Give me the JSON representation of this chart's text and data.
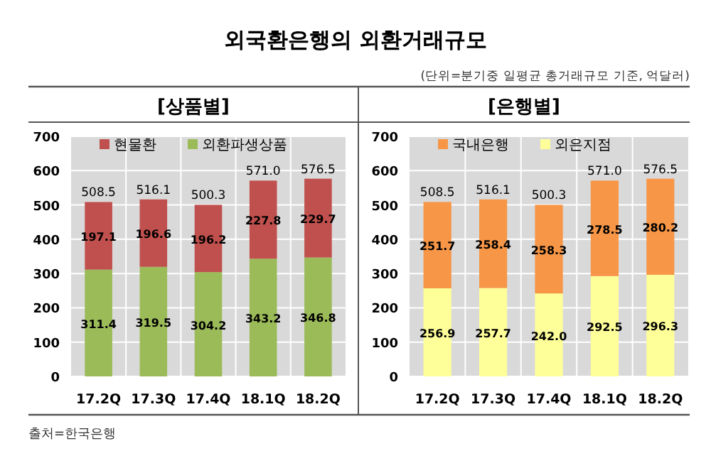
{
  "chart_data": [
    {
      "type": "bar",
      "title": "외국환은행의 외환거래규모",
      "subtitle": "[상품별]",
      "annotations": [
        "(단위=분기중 일평균 총거래규모 기준, 억달러)",
        "출처=한국은행"
      ],
      "categories": [
        "17.2Q",
        "17.3Q",
        "17.4Q",
        "18.1Q",
        "18.2Q"
      ],
      "stacked": true,
      "ylim": [
        0,
        700
      ],
      "yticks": [
        0,
        100,
        200,
        300,
        400,
        500,
        600,
        700
      ],
      "grid": true,
      "legend": "top",
      "series": [
        {
          "name": "외환파생상품",
          "color": "#9bbb59",
          "values": [
            311.4,
            319.5,
            304.2,
            343.2,
            346.8
          ],
          "value_labels": [
            "311.4",
            "319.5",
            "304.2",
            "343.2",
            "346.8"
          ]
        },
        {
          "name": "현물환",
          "color": "#c0504d",
          "values": [
            197.1,
            196.6,
            196.2,
            227.8,
            229.7
          ],
          "value_labels": [
            "197.1",
            "196.6",
            "196.2",
            "227.8",
            "229.7"
          ]
        }
      ],
      "totals": [
        "508.5",
        "516.1",
        "500.3",
        "571.0",
        "576.5"
      ]
    },
    {
      "type": "bar",
      "title": "[은행별]",
      "categories": [
        "17.2Q",
        "17.3Q",
        "17.4Q",
        "18.1Q",
        "18.2Q"
      ],
      "stacked": true,
      "ylim": [
        0,
        700
      ],
      "yticks": [
        0,
        100,
        200,
        300,
        400,
        500,
        600,
        700
      ],
      "grid": true,
      "legend": "top",
      "series": [
        {
          "name": "외은지점",
          "color": "#ffff99",
          "values": [
            256.9,
            257.7,
            242.0,
            292.5,
            296.3
          ],
          "value_labels": [
            "256.9",
            "257.7",
            "242.0",
            "292.5",
            "296.3"
          ]
        },
        {
          "name": "국내은행",
          "color": "#f79646",
          "values": [
            251.7,
            258.4,
            258.3,
            278.5,
            280.2
          ],
          "value_labels": [
            "251.7",
            "258.4",
            "258.3",
            "278.5",
            "280.2"
          ]
        }
      ],
      "totals": [
        "508.5",
        "516.1",
        "500.3",
        "571.0",
        "576.5"
      ]
    }
  ]
}
